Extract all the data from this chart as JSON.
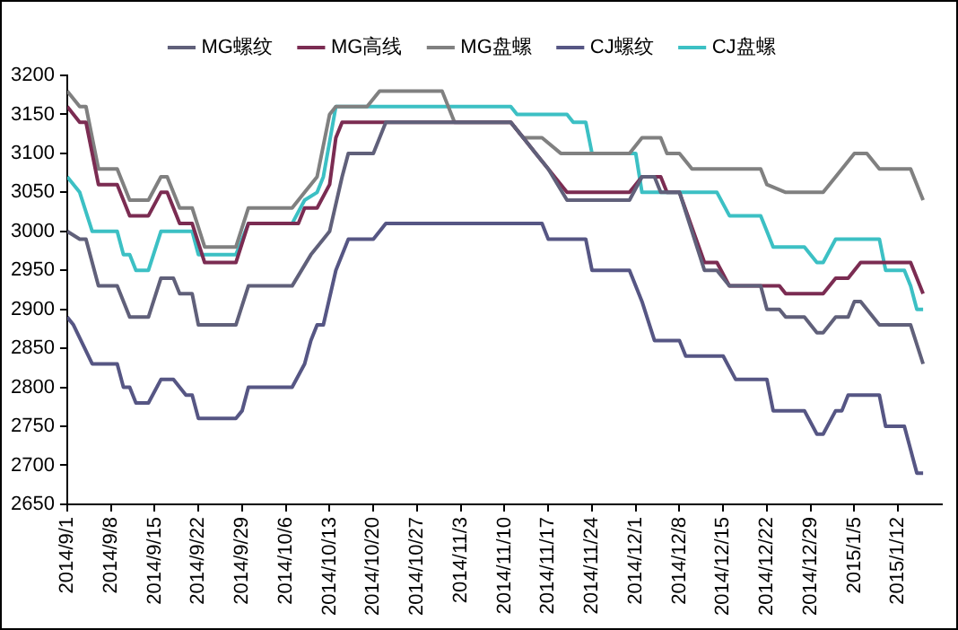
{
  "chart_data": {
    "type": "line",
    "legend": "top",
    "grid": false,
    "marker": "none",
    "line_style": "solid",
    "xlim": [
      "2014-09-01",
      "2015-01-19"
    ],
    "xticks": [
      {
        "value": "2014-09-01",
        "label": "2014/9/1"
      },
      {
        "value": "2014-09-08",
        "label": "2014/9/8"
      },
      {
        "value": "2014-09-15",
        "label": "2014/9/15"
      },
      {
        "value": "2014-09-22",
        "label": "2014/9/22"
      },
      {
        "value": "2014-09-29",
        "label": "2014/9/29"
      },
      {
        "value": "2014-10-06",
        "label": "2014/10/6"
      },
      {
        "value": "2014-10-13",
        "label": "2014/10/13"
      },
      {
        "value": "2014-10-20",
        "label": "2014/10/20"
      },
      {
        "value": "2014-10-27",
        "label": "2014/10/27"
      },
      {
        "value": "2014-11-03",
        "label": "2014/11/3"
      },
      {
        "value": "2014-11-10",
        "label": "2014/11/10"
      },
      {
        "value": "2014-11-17",
        "label": "2014/11/17"
      },
      {
        "value": "2014-11-24",
        "label": "2014/11/24"
      },
      {
        "value": "2014-12-01",
        "label": "2014/12/1"
      },
      {
        "value": "2014-12-08",
        "label": "2014/12/8"
      },
      {
        "value": "2014-12-15",
        "label": "2014/12/15"
      },
      {
        "value": "2014-12-22",
        "label": "2014/12/22"
      },
      {
        "value": "2014-12-29",
        "label": "2014/12/29"
      },
      {
        "value": "2015-01-05",
        "label": "2015/1/5"
      },
      {
        "value": "2015-01-12",
        "label": "2015/1/12"
      }
    ],
    "ylim": [
      2650,
      3200
    ],
    "yticks": [
      2650,
      2700,
      2750,
      2800,
      2850,
      2900,
      2950,
      3000,
      3050,
      3100,
      3150,
      3200
    ],
    "series": [
      {
        "name": "MG螺纹",
        "color": "#60607a",
        "x": [
          "2014-09-01",
          "2014-09-03",
          "2014-09-04",
          "2014-09-06",
          "2014-09-09",
          "2014-09-11",
          "2014-09-14",
          "2014-09-16",
          "2014-09-18",
          "2014-09-19",
          "2014-09-21",
          "2014-09-22",
          "2014-09-28",
          "2014-09-30",
          "2014-10-07",
          "2014-10-10",
          "2014-10-12",
          "2014-10-13",
          "2014-10-15",
          "2014-10-16",
          "2014-10-20",
          "2014-10-22",
          "2014-11-11",
          "2014-11-13",
          "2014-11-15",
          "2014-11-17",
          "2014-11-20",
          "2014-11-30",
          "2014-12-02",
          "2014-12-04",
          "2014-12-05",
          "2014-12-08",
          "2014-12-12",
          "2014-12-14",
          "2014-12-16",
          "2014-12-21",
          "2014-12-22",
          "2014-12-24",
          "2014-12-25",
          "2014-12-28",
          "2014-12-30",
          "2014-12-31",
          "2015-01-02",
          "2015-01-04",
          "2015-01-05",
          "2015-01-06",
          "2015-01-09",
          "2015-01-14",
          "2015-01-16"
        ],
        "values": [
          3000,
          2990,
          2990,
          2930,
          2930,
          2890,
          2890,
          2940,
          2940,
          2920,
          2920,
          2880,
          2880,
          2930,
          2930,
          2970,
          2990,
          3000,
          3070,
          3100,
          3100,
          3140,
          3140,
          3120,
          3100,
          3080,
          3040,
          3040,
          3070,
          3070,
          3050,
          3050,
          2950,
          2950,
          2930,
          2930,
          2900,
          2900,
          2890,
          2890,
          2870,
          2870,
          2890,
          2890,
          2910,
          2910,
          2880,
          2880,
          2830
        ]
      },
      {
        "name": "MG高线",
        "color": "#7b2c52",
        "x": [
          "2014-09-01",
          "2014-09-03",
          "2014-09-04",
          "2014-09-06",
          "2014-09-09",
          "2014-09-11",
          "2014-09-14",
          "2014-09-16",
          "2014-09-17",
          "2014-09-19",
          "2014-09-21",
          "2014-09-23",
          "2014-09-28",
          "2014-09-30",
          "2014-10-08",
          "2014-10-09",
          "2014-10-11",
          "2014-10-13",
          "2014-10-14",
          "2014-10-15",
          "2014-11-11",
          "2014-11-13",
          "2014-11-15",
          "2014-11-17",
          "2014-11-20",
          "2014-11-30",
          "2014-12-02",
          "2014-12-05",
          "2014-12-06",
          "2014-12-08",
          "2014-12-12",
          "2014-12-14",
          "2014-12-16",
          "2014-12-24",
          "2014-12-25",
          "2014-12-31",
          "2015-01-02",
          "2015-01-04",
          "2015-01-06",
          "2015-01-14",
          "2015-01-16"
        ],
        "values": [
          3160,
          3140,
          3140,
          3060,
          3060,
          3020,
          3020,
          3050,
          3050,
          3010,
          3010,
          2960,
          2960,
          3010,
          3010,
          3030,
          3030,
          3060,
          3120,
          3140,
          3140,
          3120,
          3100,
          3080,
          3050,
          3050,
          3070,
          3070,
          3050,
          3050,
          2960,
          2960,
          2930,
          2930,
          2920,
          2920,
          2940,
          2940,
          2960,
          2960,
          2920
        ]
      },
      {
        "name": "MG盘螺",
        "color": "#808080",
        "x": [
          "2014-09-01",
          "2014-09-03",
          "2014-09-04",
          "2014-09-06",
          "2014-09-09",
          "2014-09-11",
          "2014-09-14",
          "2014-09-16",
          "2014-09-17",
          "2014-09-19",
          "2014-09-21",
          "2014-09-23",
          "2014-09-28",
          "2014-09-30",
          "2014-10-07",
          "2014-10-09",
          "2014-10-11",
          "2014-10-13",
          "2014-10-14",
          "2014-10-19",
          "2014-10-21",
          "2014-10-31",
          "2014-11-02",
          "2014-11-11",
          "2014-11-13",
          "2014-11-16",
          "2014-11-19",
          "2014-11-30",
          "2014-12-02",
          "2014-12-05",
          "2014-12-06",
          "2014-12-08",
          "2014-12-10",
          "2014-12-21",
          "2014-12-22",
          "2014-12-25",
          "2014-12-31",
          "2015-01-02",
          "2015-01-05",
          "2015-01-07",
          "2015-01-09",
          "2015-01-14",
          "2015-01-16"
        ],
        "values": [
          3180,
          3160,
          3160,
          3080,
          3080,
          3040,
          3040,
          3070,
          3070,
          3030,
          3030,
          2980,
          2980,
          3030,
          3030,
          3050,
          3070,
          3150,
          3160,
          3160,
          3180,
          3180,
          3140,
          3140,
          3120,
          3120,
          3100,
          3100,
          3120,
          3120,
          3100,
          3100,
          3080,
          3080,
          3060,
          3050,
          3050,
          3070,
          3100,
          3100,
          3080,
          3080,
          3040
        ]
      },
      {
        "name": "CJ螺纹",
        "color": "#565684",
        "x": [
          "2014-09-01",
          "2014-09-02",
          "2014-09-05",
          "2014-09-09",
          "2014-09-10",
          "2014-09-11",
          "2014-09-12",
          "2014-09-14",
          "2014-09-16",
          "2014-09-18",
          "2014-09-20",
          "2014-09-21",
          "2014-09-22",
          "2014-09-28",
          "2014-09-29",
          "2014-09-30",
          "2014-10-07",
          "2014-10-09",
          "2014-10-10",
          "2014-10-11",
          "2014-10-12",
          "2014-10-14",
          "2014-10-16",
          "2014-10-20",
          "2014-10-22",
          "2014-11-16",
          "2014-11-17",
          "2014-11-23",
          "2014-11-24",
          "2014-11-30",
          "2014-12-02",
          "2014-12-04",
          "2014-12-08",
          "2014-12-09",
          "2014-12-15",
          "2014-12-17",
          "2014-12-22",
          "2014-12-23",
          "2014-12-28",
          "2014-12-30",
          "2014-12-31",
          "2015-01-02",
          "2015-01-03",
          "2015-01-04",
          "2015-01-09",
          "2015-01-10",
          "2015-01-13",
          "2015-01-14",
          "2015-01-15",
          "2015-01-16"
        ],
        "values": [
          2890,
          2880,
          2830,
          2830,
          2800,
          2800,
          2780,
          2780,
          2810,
          2810,
          2790,
          2790,
          2760,
          2760,
          2770,
          2800,
          2800,
          2830,
          2860,
          2880,
          2880,
          2950,
          2990,
          2990,
          3010,
          3010,
          2990,
          2990,
          2950,
          2950,
          2910,
          2860,
          2860,
          2840,
          2840,
          2810,
          2810,
          2770,
          2770,
          2740,
          2740,
          2770,
          2770,
          2790,
          2790,
          2750,
          2750,
          2720,
          2690,
          2690
        ]
      },
      {
        "name": "CJ盘螺",
        "color": "#3cc0c4",
        "x": [
          "2014-09-01",
          "2014-09-03",
          "2014-09-05",
          "2014-09-09",
          "2014-09-10",
          "2014-09-11",
          "2014-09-12",
          "2014-09-14",
          "2014-09-16",
          "2014-09-21",
          "2014-09-22",
          "2014-09-28",
          "2014-09-30",
          "2014-10-07",
          "2014-10-09",
          "2014-10-11",
          "2014-10-12",
          "2014-10-14",
          "2014-11-11",
          "2014-11-12",
          "2014-11-20",
          "2014-11-21",
          "2014-11-23",
          "2014-11-24",
          "2014-12-01",
          "2014-12-02",
          "2014-12-14",
          "2014-12-16",
          "2014-12-21",
          "2014-12-23",
          "2014-12-28",
          "2014-12-30",
          "2014-12-31",
          "2015-01-02",
          "2015-01-09",
          "2015-01-10",
          "2015-01-13",
          "2015-01-14",
          "2015-01-15",
          "2015-01-16"
        ],
        "values": [
          3070,
          3050,
          3000,
          3000,
          2970,
          2970,
          2950,
          2950,
          3000,
          3000,
          2970,
          2970,
          3010,
          3010,
          3040,
          3050,
          3070,
          3160,
          3160,
          3150,
          3150,
          3140,
          3140,
          3100,
          3100,
          3050,
          3050,
          3020,
          3020,
          2980,
          2980,
          2960,
          2960,
          2990,
          2990,
          2950,
          2950,
          2930,
          2900,
          2900
        ]
      }
    ]
  }
}
